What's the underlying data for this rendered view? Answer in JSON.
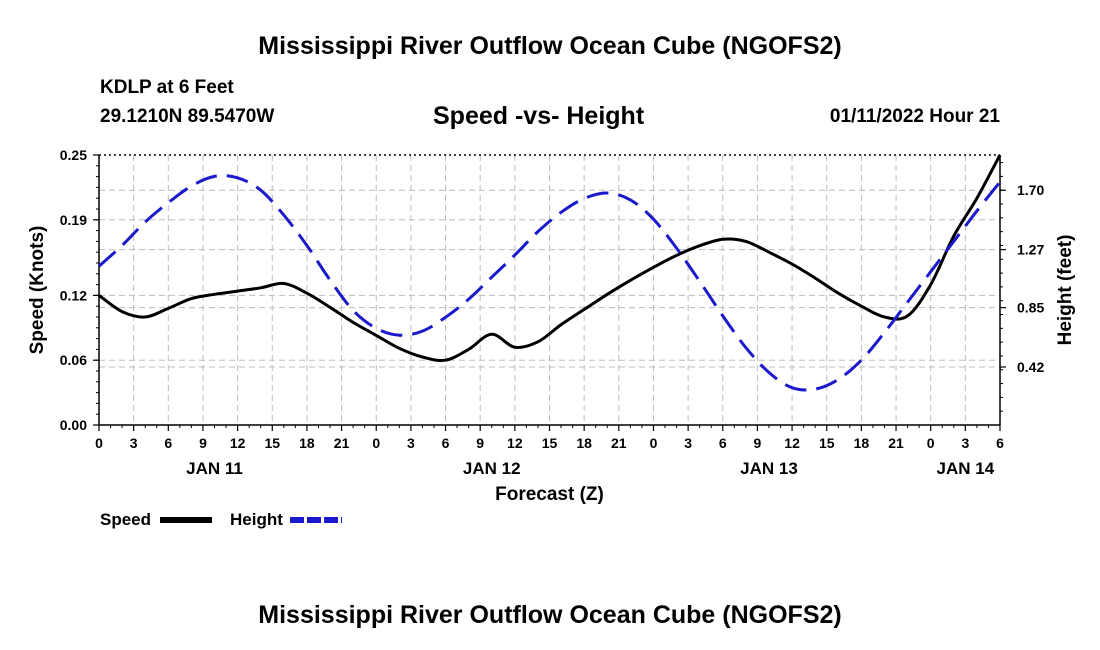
{
  "header": {
    "title": "Mississippi River Outflow Ocean Cube (NGOFS2)",
    "station": "KDLP at 6 Feet",
    "coordinates": "29.1210N  89.5470W",
    "datetime": "01/11/2022 Hour 21"
  },
  "footer": {
    "title": "Mississippi River Outflow Ocean Cube (NGOFS2)"
  },
  "chart_data": {
    "type": "line",
    "title": "Speed -vs- Height",
    "xlabel": "Forecast (Z)",
    "ylabel_left": "Speed (Knots)",
    "ylabel_right": "Height (feet)",
    "x_range": [
      0,
      78
    ],
    "x_tick_labels": [
      "0",
      "3",
      "6",
      "9",
      "12",
      "15",
      "18",
      "21",
      "0",
      "3",
      "6",
      "9",
      "12",
      "15",
      "18",
      "21",
      "0",
      "3",
      "6",
      "9",
      "12",
      "15",
      "18",
      "21",
      "0",
      "3",
      "6"
    ],
    "day_labels": [
      {
        "label": "JAN 11",
        "hour": 10
      },
      {
        "label": "JAN 12",
        "hour": 34
      },
      {
        "label": "JAN 13",
        "hour": 58
      },
      {
        "label": "JAN 14",
        "hour": 75
      }
    ],
    "y_left": {
      "range": [
        0,
        0.25
      ],
      "ticks": [
        0.0,
        0.06,
        0.12,
        0.19,
        0.25
      ],
      "tick_labels": [
        "0.00",
        "0.06",
        "0.12",
        "0.19",
        "0.25"
      ]
    },
    "y_right": {
      "range": [
        0.0,
        1.955
      ],
      "ticks": [
        0.42,
        0.85,
        1.27,
        1.7
      ],
      "tick_labels": [
        "0.42",
        "0.85",
        "1.27",
        "1.70"
      ]
    },
    "grid": true,
    "series": [
      {
        "name": "Speed",
        "axis": "left",
        "color": "#000000",
        "style": "solid",
        "x": [
          0,
          2,
          4,
          6,
          8,
          10,
          12,
          14,
          16,
          18,
          20,
          22,
          24,
          26,
          28,
          30,
          32,
          34,
          36,
          38,
          40,
          42,
          44,
          46,
          48,
          50,
          52,
          54,
          56,
          58,
          60,
          62,
          64,
          66,
          68,
          70,
          72,
          74,
          76,
          78
        ],
        "values": [
          0.12,
          0.105,
          0.1,
          0.108,
          0.117,
          0.121,
          0.124,
          0.127,
          0.131,
          0.122,
          0.109,
          0.095,
          0.083,
          0.071,
          0.063,
          0.06,
          0.07,
          0.084,
          0.072,
          0.077,
          0.093,
          0.107,
          0.121,
          0.134,
          0.146,
          0.157,
          0.166,
          0.172,
          0.17,
          0.16,
          0.149,
          0.136,
          0.122,
          0.11,
          0.1,
          0.101,
          0.13,
          0.175,
          0.21,
          0.25
        ]
      },
      {
        "name": "Height",
        "axis": "right",
        "color": "#1a1acc",
        "style": "dashed",
        "x": [
          0,
          2,
          4,
          6,
          8,
          10,
          12,
          14,
          16,
          18,
          20,
          22,
          24,
          26,
          28,
          30,
          32,
          34,
          36,
          38,
          40,
          42,
          44,
          46,
          48,
          50,
          52,
          54,
          56,
          58,
          60,
          62,
          64,
          66,
          68,
          70,
          72,
          74,
          76,
          78
        ],
        "values": [
          1.15,
          1.3,
          1.47,
          1.61,
          1.73,
          1.8,
          1.79,
          1.7,
          1.52,
          1.3,
          1.05,
          0.83,
          0.7,
          0.65,
          0.68,
          0.78,
          0.91,
          1.07,
          1.23,
          1.4,
          1.54,
          1.64,
          1.68,
          1.63,
          1.49,
          1.28,
          1.04,
          0.79,
          0.56,
          0.38,
          0.27,
          0.26,
          0.33,
          0.47,
          0.67,
          0.89,
          1.11,
          1.33,
          1.55,
          1.76
        ]
      }
    ]
  },
  "legend": {
    "items": [
      {
        "label": "Speed",
        "color": "#000000",
        "style": "solid"
      },
      {
        "label": "Height",
        "color": "#1a1acc",
        "style": "dashed"
      }
    ]
  }
}
